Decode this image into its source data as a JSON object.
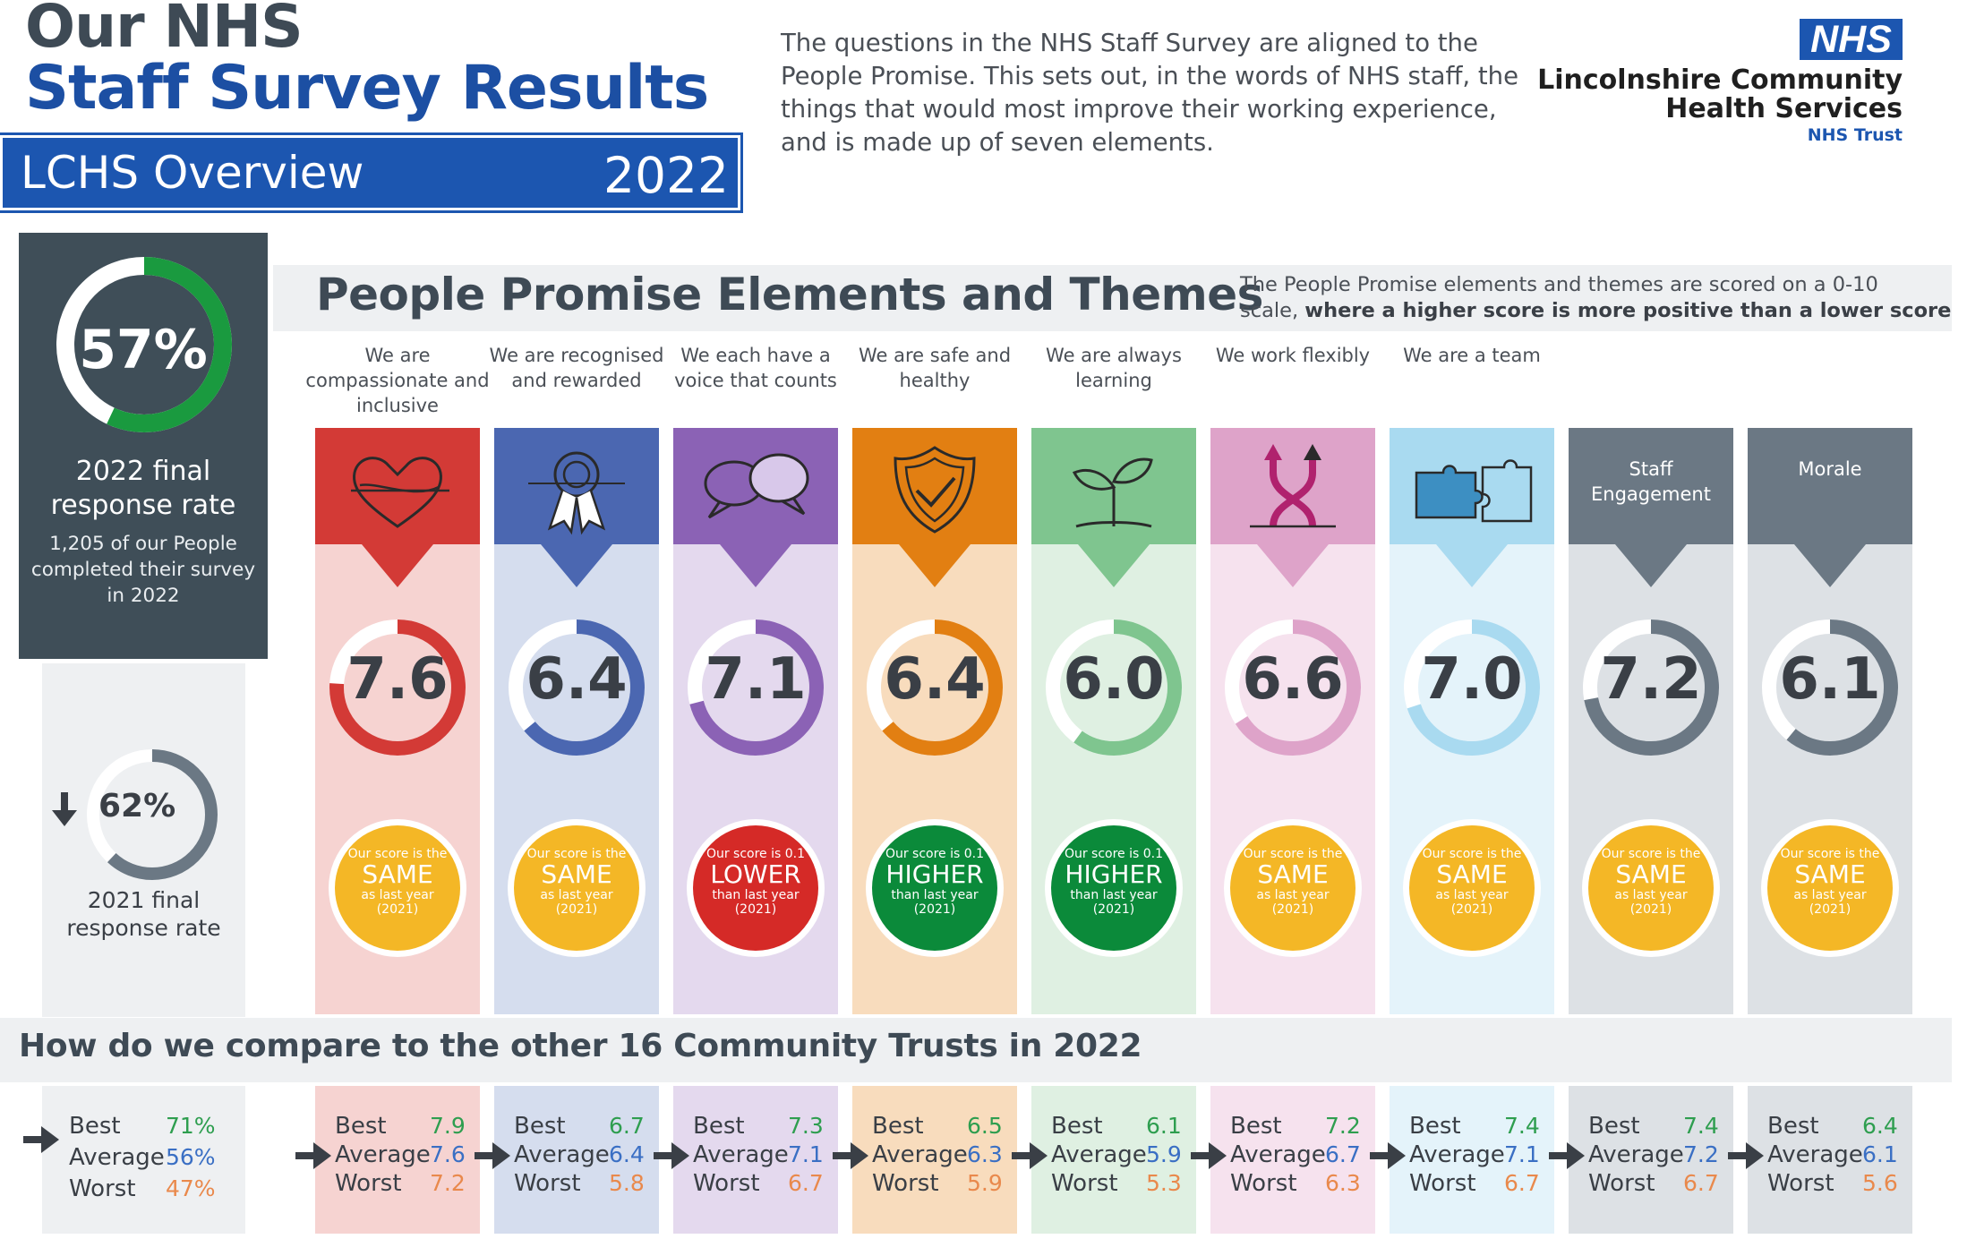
{
  "header": {
    "title_line1": "Our NHS",
    "title_line2": "Staff Survey Results",
    "banner_label": "LCHS Overview",
    "banner_year": "2022",
    "intro": "The questions in the NHS Staff Survey are aligned to the People Promise. This sets out, in the words of NHS staff, the things that would most improve their working experience, and is made up of seven elements.",
    "logo_nhs": "NHS",
    "org_line1": "Lincolnshire Community",
    "org_line2": "Health Services",
    "org_line3": "NHS Trust"
  },
  "response_rate": {
    "current_value": "57%",
    "current_fraction": 0.57,
    "current_label": "2022 final response rate",
    "current_sub": "1,205 of our People completed their survey in 2022",
    "previous_value": "62%",
    "previous_fraction": 0.62,
    "previous_label": "2021 final response rate",
    "compare": {
      "best_label": "Best",
      "best": "71%",
      "average_label": "Average",
      "average": "56%",
      "worst_label": "Worst",
      "worst": "47%"
    }
  },
  "section": {
    "title": "People Promise Elements and Themes",
    "note_line1": "The People Promise elements and themes are scored on a 0-10",
    "note_line2_plain": "scale, ",
    "note_line2_bold": "where a higher score is more positive than a lower score"
  },
  "compare_section": {
    "title": "How do we compare to the other 16 Community Trusts in 2022"
  },
  "elements": [
    {
      "title": "We are compassionate and inclusive",
      "icon": "heart-icon",
      "score": "7.6",
      "score_value": 7.6,
      "color": "#d33a36",
      "light": "#f6d3d1",
      "badge": {
        "line1": "Our score is the",
        "line2": "SAME",
        "line3": "as last year",
        "line4": "(2021)",
        "color": "#f4b726"
      },
      "best": "7.9",
      "average": "7.6",
      "worst": "7.2"
    },
    {
      "title": "We are recognised and rewarded",
      "icon": "rosette-icon",
      "score": "6.4",
      "score_value": 6.4,
      "color": "#4b67b1",
      "light": "#d5ddee",
      "badge": {
        "line1": "Our score is the",
        "line2": "SAME",
        "line3": "as last year",
        "line4": "(2021)",
        "color": "#f4b726"
      },
      "best": "6.7",
      "average": "6.4",
      "worst": "5.8"
    },
    {
      "title": "We each have a voice that counts",
      "icon": "speech-bubbles-icon",
      "score": "7.1",
      "score_value": 7.1,
      "color": "#8b62b5",
      "light": "#e4d9ee",
      "badge": {
        "line1": "Our score is 0.1",
        "line2": "LOWER",
        "line3": "than last year",
        "line4": "(2021)",
        "color": "#d52a27"
      },
      "best": "7.3",
      "average": "7.1",
      "worst": "6.7"
    },
    {
      "title": "We are safe and healthy",
      "icon": "shield-check-icon",
      "score": "6.4",
      "score_value": 6.4,
      "color": "#e27f12",
      "light": "#f8dcbd",
      "badge": {
        "line1": "Our score is 0.1",
        "line2": "HIGHER",
        "line3": "than last year",
        "line4": "(2021)",
        "color": "#0b8a3a"
      },
      "best": "6.5",
      "average": "6.3",
      "worst": "5.9"
    },
    {
      "title": "We are always learning",
      "icon": "seedling-icon",
      "score": "6.0",
      "score_value": 6.0,
      "color": "#7fc58f",
      "light": "#dff0e2",
      "badge": {
        "line1": "Our score is 0.1",
        "line2": "HIGHER",
        "line3": "than last year",
        "line4": "(2021)",
        "color": "#0b8a3a"
      },
      "best": "6.1",
      "average": "5.9",
      "worst": "5.3"
    },
    {
      "title": "We work flexibly",
      "icon": "flexible-arrows-icon",
      "score": "6.6",
      "score_value": 6.6,
      "color": "#dea3c9",
      "light": "#f6e2ee",
      "badge": {
        "line1": "Our score is the",
        "line2": "SAME",
        "line3": "as last year",
        "line4": "(2021)",
        "color": "#f4b726"
      },
      "best": "7.2",
      "average": "6.7",
      "worst": "6.3"
    },
    {
      "title": "We are a team",
      "icon": "puzzle-icon",
      "score": "7.0",
      "score_value": 7.0,
      "color": "#a9daf0",
      "light": "#e4f3fa",
      "badge": {
        "line1": "Our score is the",
        "line2": "SAME",
        "line3": "as last year",
        "line4": "(2021)",
        "color": "#f4b726"
      },
      "best": "7.4",
      "average": "7.1",
      "worst": "6.7"
    },
    {
      "title": "",
      "head_label": "Staff Engagement",
      "icon": "",
      "score": "7.2",
      "score_value": 7.2,
      "color": "#6b7884",
      "light": "#dde1e5",
      "badge": {
        "line1": "Our score is the",
        "line2": "SAME",
        "line3": "as last year",
        "line4": "(2021)",
        "color": "#f4b726"
      },
      "best": "7.4",
      "average": "7.2",
      "worst": "6.7"
    },
    {
      "title": "",
      "head_label": "Morale",
      "icon": "",
      "score": "6.1",
      "score_value": 6.1,
      "color": "#6b7884",
      "light": "#dde1e5",
      "badge": {
        "line1": "Our score is the",
        "line2": "SAME",
        "line3": "as last year",
        "line4": "(2021)",
        "color": "#f4b726"
      },
      "best": "6.4",
      "average": "6.1",
      "worst": "5.6"
    }
  ],
  "compare_labels": {
    "best": "Best",
    "average": "Average",
    "worst": "Worst"
  },
  "compare_colors": {
    "best": "#2e9e4f",
    "average": "#3a6fc4",
    "worst": "#e9894c"
  }
}
